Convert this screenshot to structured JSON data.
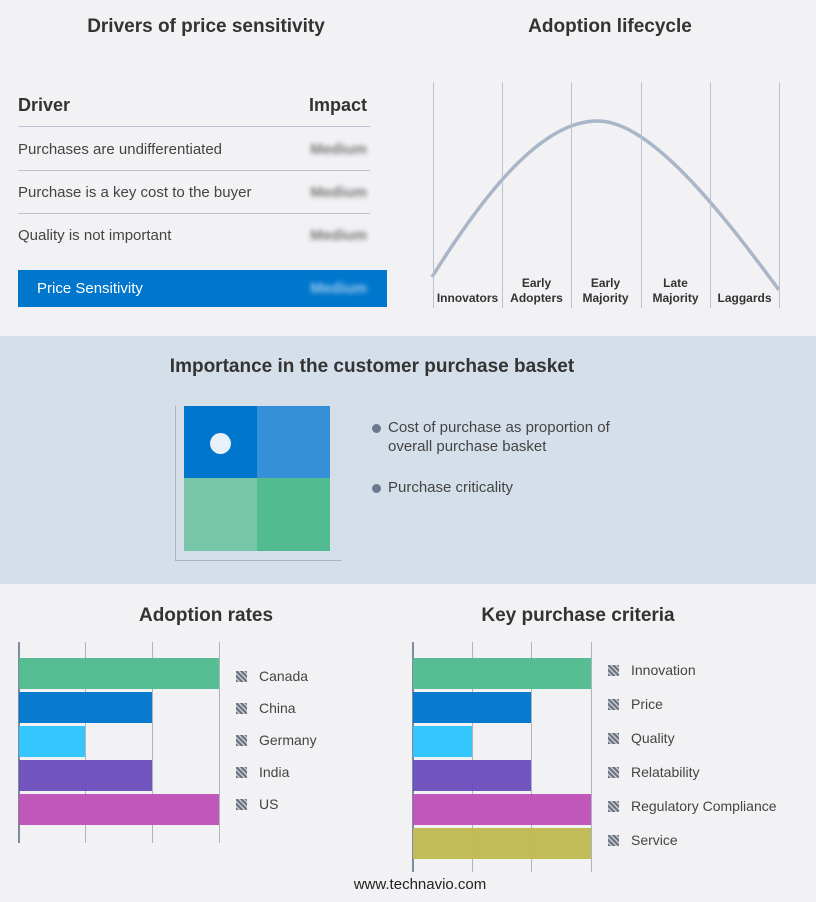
{
  "drivers": {
    "title": "Drivers of price sensitivity",
    "col_driver": "Driver",
    "col_impact": "Impact",
    "rows": [
      {
        "driver": "Purchases are undifferentiated",
        "impact": "Medium"
      },
      {
        "driver": "Purchase is a key cost to the buyer",
        "impact": "Medium"
      },
      {
        "driver": "Quality is not important",
        "impact": "Medium"
      }
    ],
    "summary": {
      "label": "Price Sensitivity",
      "impact": "Medium"
    },
    "accent": "#0077cc"
  },
  "lifecycle": {
    "title": "Adoption lifecycle",
    "stages": [
      "Innovators",
      "Early Adopters",
      "Early Majority",
      "Late Majority",
      "Laggards"
    ]
  },
  "basket": {
    "title": "Importance in the customer purchase basket",
    "legend": [
      "Cost of purchase as proportion of overall purchase basket",
      "Purchase criticality"
    ],
    "colors": [
      "#0077cc",
      "#3590d8",
      "#77c6a8",
      "#52bc90"
    ]
  },
  "chart_data": [
    {
      "type": "bar",
      "title": "Adoption rates",
      "categories": [
        "Canada",
        "China",
        "Germany",
        "India",
        "US"
      ],
      "values": [
        3,
        2,
        1,
        2,
        3
      ],
      "xlim": [
        0,
        3
      ],
      "grid": true,
      "legend": "right",
      "colors": [
        "#52bc90",
        "#0077cc",
        "#2ec4fd",
        "#6d4fbc",
        "#bf52b8"
      ]
    },
    {
      "type": "bar",
      "title": "Key purchase criteria",
      "categories": [
        "Innovation",
        "Price",
        "Quality",
        "Relatability",
        "Regulatory Compliance",
        "Service"
      ],
      "values": [
        3,
        2,
        1,
        2,
        3,
        3
      ],
      "xlim": [
        0,
        3
      ],
      "grid": true,
      "legend": "right",
      "colors": [
        "#52bc90",
        "#0077cc",
        "#2ec4fd",
        "#6d4fbc",
        "#bf52b8",
        "#bfba52"
      ]
    }
  ],
  "footer": "www.technavio.com"
}
